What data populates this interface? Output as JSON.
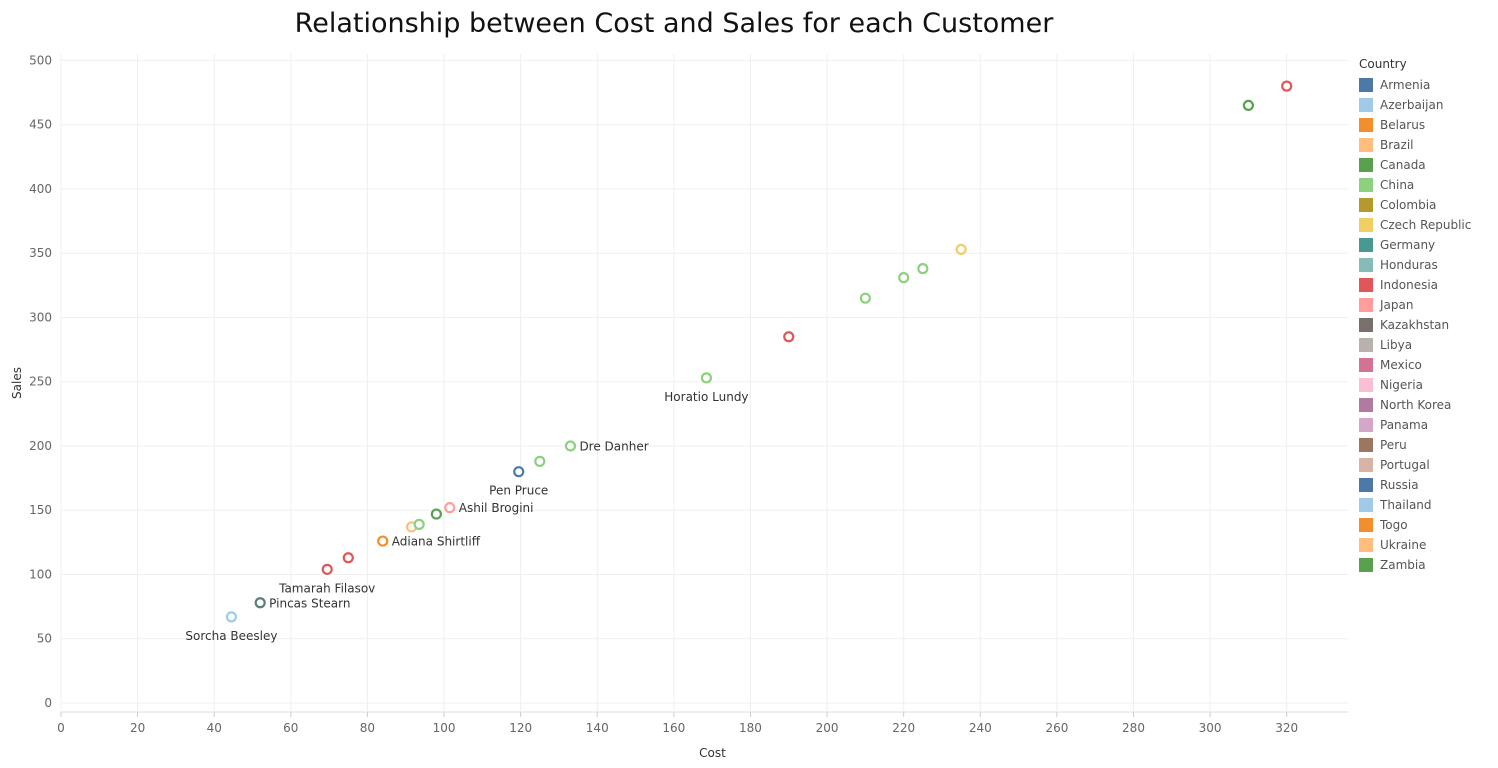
{
  "chart_data": {
    "type": "scatter",
    "title": "Relationship between Cost and Sales for each Customer",
    "xlabel": "Cost",
    "ylabel": "Sales",
    "xlim": [
      0,
      336
    ],
    "ylim": [
      -7,
      505
    ],
    "x_ticks": [
      0,
      20,
      40,
      60,
      80,
      100,
      120,
      140,
      160,
      180,
      200,
      220,
      240,
      260,
      280,
      300,
      320
    ],
    "y_ticks": [
      0,
      50,
      100,
      150,
      200,
      250,
      300,
      350,
      400,
      450,
      500
    ],
    "grid": true,
    "legend": {
      "title": "Country",
      "placement": "right",
      "items": [
        {
          "name": "Armenia",
          "color": "#4e79a7"
        },
        {
          "name": "Azerbaijan",
          "color": "#a0cbe8"
        },
        {
          "name": "Belarus",
          "color": "#f28e2b"
        },
        {
          "name": "Brazil",
          "color": "#ffbe7d"
        },
        {
          "name": "Canada",
          "color": "#59a14f"
        },
        {
          "name": "China",
          "color": "#8cd17d"
        },
        {
          "name": "Colombia",
          "color": "#b6992d"
        },
        {
          "name": "Czech Republic",
          "color": "#f1ce63"
        },
        {
          "name": "Germany",
          "color": "#499894"
        },
        {
          "name": "Honduras",
          "color": "#86bcb6"
        },
        {
          "name": "Indonesia",
          "color": "#e15759"
        },
        {
          "name": "Japan",
          "color": "#ff9d9a"
        },
        {
          "name": "Kazakhstan",
          "color": "#79706e"
        },
        {
          "name": "Libya",
          "color": "#bab0ac"
        },
        {
          "name": "Mexico",
          "color": "#d37295"
        },
        {
          "name": "Nigeria",
          "color": "#fabfd2"
        },
        {
          "name": "North Korea",
          "color": "#b07aa1"
        },
        {
          "name": "Panama",
          "color": "#d4a6c8"
        },
        {
          "name": "Peru",
          "color": "#9d7660"
        },
        {
          "name": "Portugal",
          "color": "#d7b5a6"
        },
        {
          "name": "Russia",
          "color": "#4e79a7"
        },
        {
          "name": "Thailand",
          "color": "#a0cbe8"
        },
        {
          "name": "Togo",
          "color": "#f28e2b"
        },
        {
          "name": "Ukraine",
          "color": "#ffbe7d"
        },
        {
          "name": "Zambia",
          "color": "#59a14f"
        }
      ]
    },
    "points": [
      {
        "x": 44.5,
        "y": 67,
        "color": "#a0cbe8",
        "label": "Sorcha Beesley",
        "label_pos": "below"
      },
      {
        "x": 52,
        "y": 78,
        "color": "#5b7f7a",
        "label": "Pincas Stearn",
        "label_pos": "right"
      },
      {
        "x": 69.5,
        "y": 104,
        "color": "#e15759",
        "label": "Tamarah Filasov",
        "label_pos": "below"
      },
      {
        "x": 75,
        "y": 113,
        "color": "#e15759",
        "label": "",
        "label_pos": ""
      },
      {
        "x": 84,
        "y": 126,
        "color": "#f28e2b",
        "label": "Adiana Shirtliff",
        "label_pos": "right"
      },
      {
        "x": 91.5,
        "y": 137,
        "color": "#ffbe7d",
        "label": "",
        "label_pos": ""
      },
      {
        "x": 93.5,
        "y": 139,
        "color": "#8cd17d",
        "label": "",
        "label_pos": ""
      },
      {
        "x": 98,
        "y": 147,
        "color": "#59a14f",
        "label": "",
        "label_pos": ""
      },
      {
        "x": 101.5,
        "y": 152,
        "color": "#ff9d9a",
        "label": "Ashil Brogini",
        "label_pos": "right"
      },
      {
        "x": 119.5,
        "y": 180,
        "color": "#4e79a7",
        "label": "Pen Pruce",
        "label_pos": "below"
      },
      {
        "x": 125,
        "y": 188,
        "color": "#8cd17d",
        "label": "",
        "label_pos": ""
      },
      {
        "x": 133,
        "y": 200,
        "color": "#8cd17d",
        "label": "Dre Danher",
        "label_pos": "right"
      },
      {
        "x": 168.5,
        "y": 253,
        "color": "#8cd17d",
        "label": "Horatio Lundy",
        "label_pos": "below"
      },
      {
        "x": 190,
        "y": 285,
        "color": "#e15759",
        "label": "",
        "label_pos": ""
      },
      {
        "x": 210,
        "y": 315,
        "color": "#8cd17d",
        "label": "",
        "label_pos": ""
      },
      {
        "x": 220,
        "y": 331,
        "color": "#8cd17d",
        "label": "",
        "label_pos": ""
      },
      {
        "x": 225,
        "y": 338,
        "color": "#8cd17d",
        "label": "",
        "label_pos": ""
      },
      {
        "x": 235,
        "y": 353,
        "color": "#f1ce63",
        "label": "",
        "label_pos": ""
      },
      {
        "x": 310,
        "y": 465,
        "color": "#59a14f",
        "label": "",
        "label_pos": ""
      },
      {
        "x": 320,
        "y": 480,
        "color": "#e15759",
        "label": "",
        "label_pos": ""
      }
    ]
  }
}
